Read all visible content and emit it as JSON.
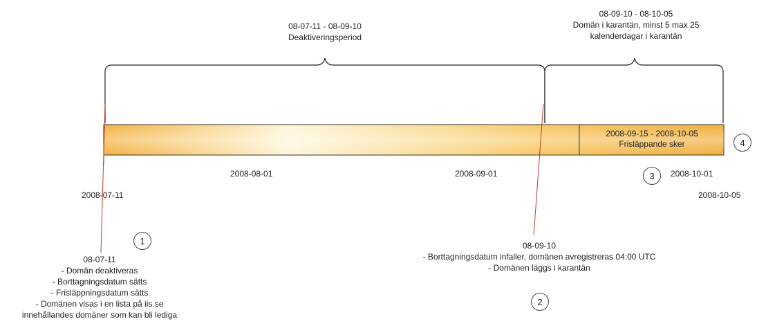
{
  "periods": {
    "deactivation": {
      "dates": "08-07-11 - 08-09-10",
      "label": "Deaktiveringsperiod"
    },
    "quarantine": {
      "dates": "08-09-10 - 08-10-05",
      "line1": "Domän i karantän, minst 5 max 25",
      "line2": "kalenderdagar i karantän"
    },
    "release": {
      "dates": "2008-09-15 - 2008-10-05",
      "label": "Frisläppande sker"
    }
  },
  "ticks": {
    "start": "2008-07-11",
    "aug": "2008-08-01",
    "sep": "2008-09-01",
    "oct": "2008-10-01",
    "end": "2008-10-05"
  },
  "markers": {
    "m1": "1",
    "m2": "2",
    "m3": "3",
    "m4": "4"
  },
  "event1": {
    "date": "08-07-11",
    "items": [
      "- Domän deaktiveras",
      "- Borttagningsdatum sätts",
      "- Frisläppningsdatum sätts",
      "- Domänen visas i en lista på iis.se",
      "innehållandes domäner som kan bli lediga"
    ]
  },
  "event2": {
    "date": "08-09-10",
    "items": [
      "- Borttagningsdatum infaller, domänen avregistreras 04:00 UTC",
      "- Domänen läggs i karantän"
    ]
  },
  "colors": {
    "bar_edge": "#f0ae3c",
    "bar_center": "#fff6d9",
    "border": "#333333",
    "event_line": "#c0392b"
  }
}
